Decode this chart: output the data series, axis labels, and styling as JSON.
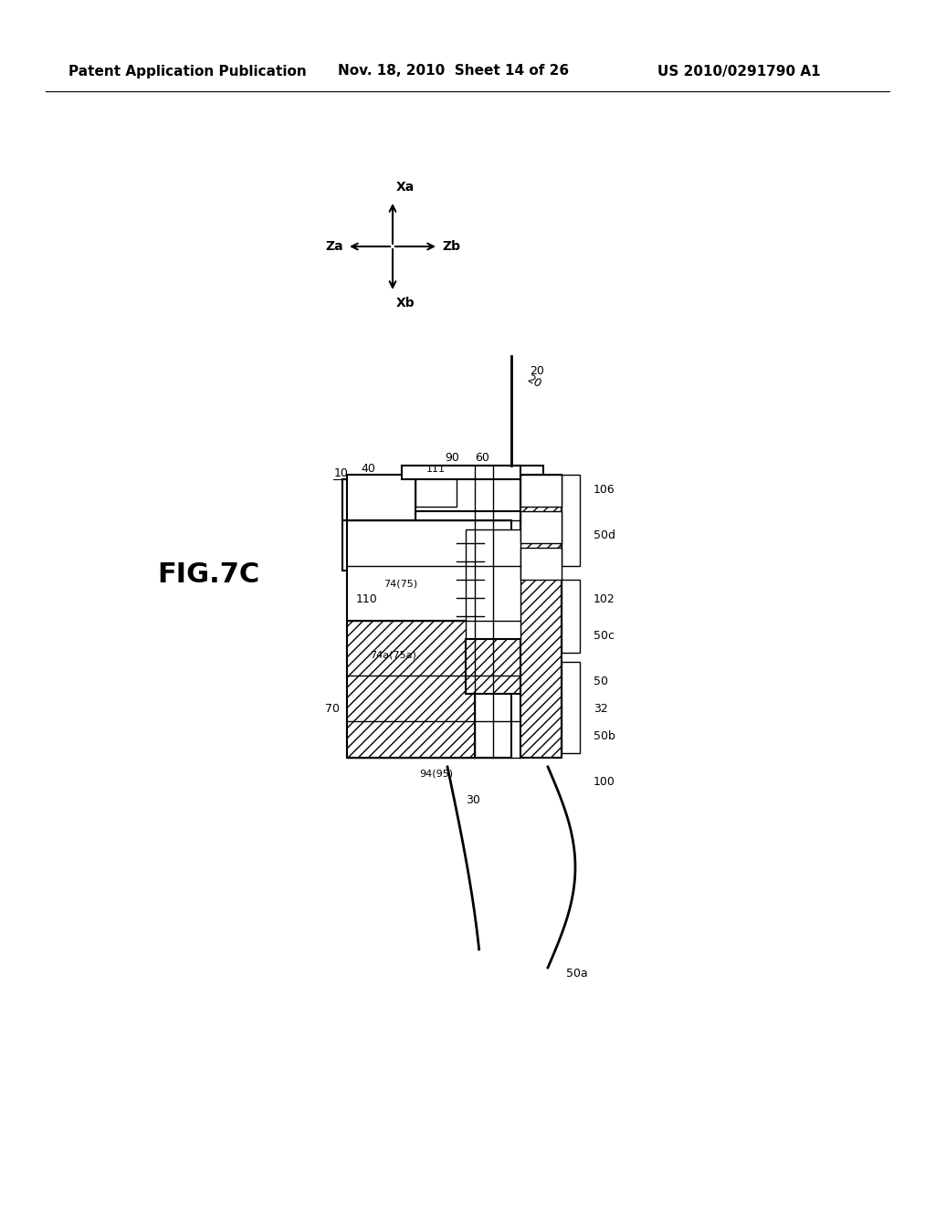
{
  "background_color": "#ffffff",
  "header_left": "Patent Application Publication",
  "header_mid": "Nov. 18, 2010  Sheet 14 of 26",
  "header_right": "US 2010/0291790 A1",
  "fig_label": "FIG.7C",
  "diagram_label_10": "10",
  "diagram_label_20": "20",
  "diagram_label_30": "30",
  "diagram_label_40": "40",
  "diagram_label_50a": "50a",
  "diagram_label_50b": "50b",
  "diagram_label_50c": "50c",
  "diagram_label_50d": "50d",
  "diagram_label_50": "50",
  "diagram_label_60": "60",
  "diagram_label_70": "70",
  "diagram_label_74_75": "74(75)",
  "diagram_label_74a_75a": "74a(75a)",
  "diagram_label_90": "90",
  "diagram_label_94_95": "94(95)",
  "diagram_label_100": "100",
  "diagram_label_102": "102",
  "diagram_label_106": "106",
  "diagram_label_110": "110",
  "diagram_label_111": "111",
  "diagram_label_32": "32"
}
